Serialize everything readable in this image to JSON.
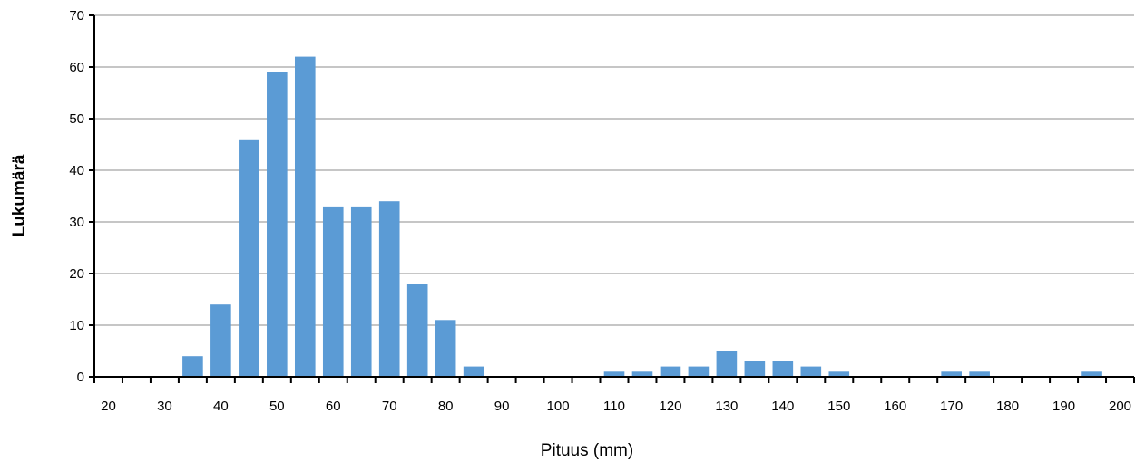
{
  "chart_data": {
    "type": "bar",
    "title": "",
    "xlabel": "Pituus (mm)",
    "ylabel": "Lukumärä",
    "ylim": [
      0,
      70
    ],
    "yticks": [
      "0",
      "10",
      "20",
      "30",
      "40",
      "50",
      "60",
      "70"
    ],
    "xticks": [
      "20",
      "30",
      "40",
      "50",
      "60",
      "70",
      "80",
      "90",
      "100",
      "110",
      "120",
      "130",
      "140",
      "150",
      "160",
      "170",
      "180",
      "190",
      "200"
    ],
    "grid": true,
    "legend": "none",
    "bar_color": "#5B9BD5",
    "x": [
      20,
      25,
      30,
      35,
      40,
      45,
      50,
      55,
      60,
      65,
      70,
      75,
      80,
      85,
      90,
      95,
      100,
      105,
      110,
      115,
      120,
      125,
      130,
      135,
      140,
      145,
      150,
      155,
      160,
      165,
      170,
      175,
      180,
      185,
      190,
      195
    ],
    "values": [
      0,
      0,
      0,
      4,
      14,
      46,
      59,
      62,
      33,
      33,
      34,
      18,
      11,
      2,
      0,
      0,
      0,
      0,
      1,
      1,
      2,
      2,
      5,
      3,
      3,
      2,
      1,
      0,
      0,
      0,
      1,
      1,
      0,
      0,
      0,
      1
    ]
  }
}
